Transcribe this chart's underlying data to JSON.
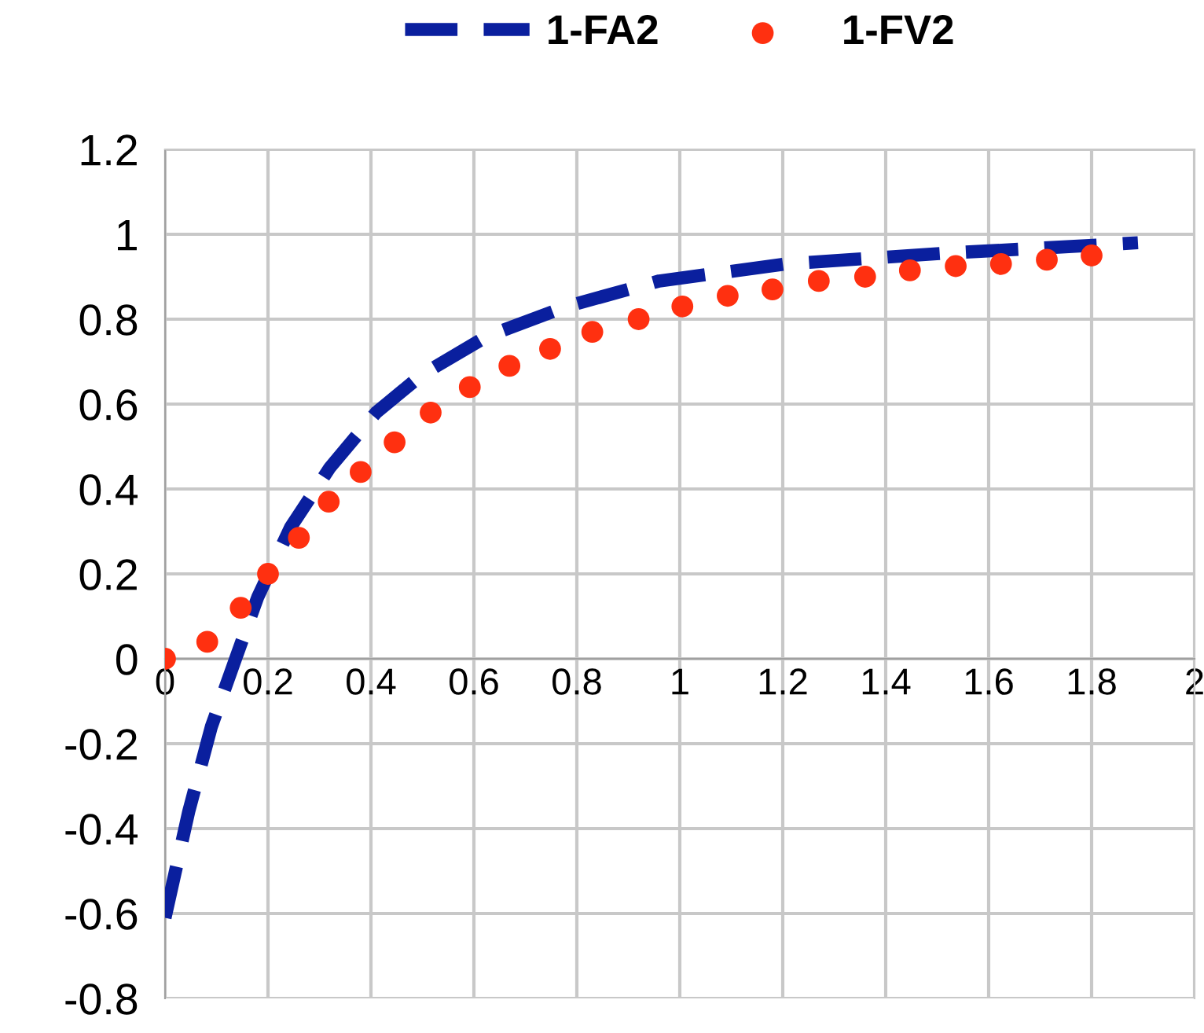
{
  "chart_data": {
    "type": "line",
    "xlim": [
      0,
      2
    ],
    "xticks": [
      0,
      0.2,
      0.4,
      0.6,
      0.8,
      1,
      1.2,
      1.4,
      1.6,
      1.8,
      2
    ],
    "ylim": [
      -0.8,
      1.2
    ],
    "yticks": [
      -0.8,
      -0.6,
      -0.4,
      -0.2,
      0,
      0.2,
      0.4,
      0.6,
      0.8,
      1,
      1.2
    ],
    "grid": true,
    "legend": "top",
    "series": [
      {
        "name": "1-FA2",
        "color": "#0a1f9e",
        "line_style": "dashed",
        "marker": "none",
        "x": [
          0,
          0.046,
          0.09,
          0.137,
          0.18,
          0.244,
          0.32,
          0.41,
          0.5,
          0.626,
          0.78,
          0.96,
          1.206,
          1.51,
          1.817,
          1.89
        ],
        "values": [
          -0.61,
          -0.36,
          -0.16,
          0,
          0.145,
          0.31,
          0.45,
          0.58,
          0.67,
          0.76,
          0.83,
          0.89,
          0.93,
          0.955,
          0.975,
          0.98
        ]
      },
      {
        "name": "1-FV2",
        "type": "scatter",
        "color": "#ff3010",
        "marker": "circle",
        "x": [
          0,
          0.082,
          0.147,
          0.2,
          0.26,
          0.318,
          0.38,
          0.446,
          0.516,
          0.592,
          0.669,
          0.748,
          0.83,
          0.92,
          1.005,
          1.093,
          1.18,
          1.27,
          1.36,
          1.447,
          1.536,
          1.624,
          1.713,
          1.8
        ],
        "values": [
          0,
          0.04,
          0.12,
          0.2,
          0.285,
          0.37,
          0.44,
          0.51,
          0.58,
          0.64,
          0.69,
          0.73,
          0.77,
          0.8,
          0.83,
          0.855,
          0.87,
          0.89,
          0.9,
          0.915,
          0.925,
          0.93,
          0.94,
          0.95
        ]
      }
    ]
  }
}
